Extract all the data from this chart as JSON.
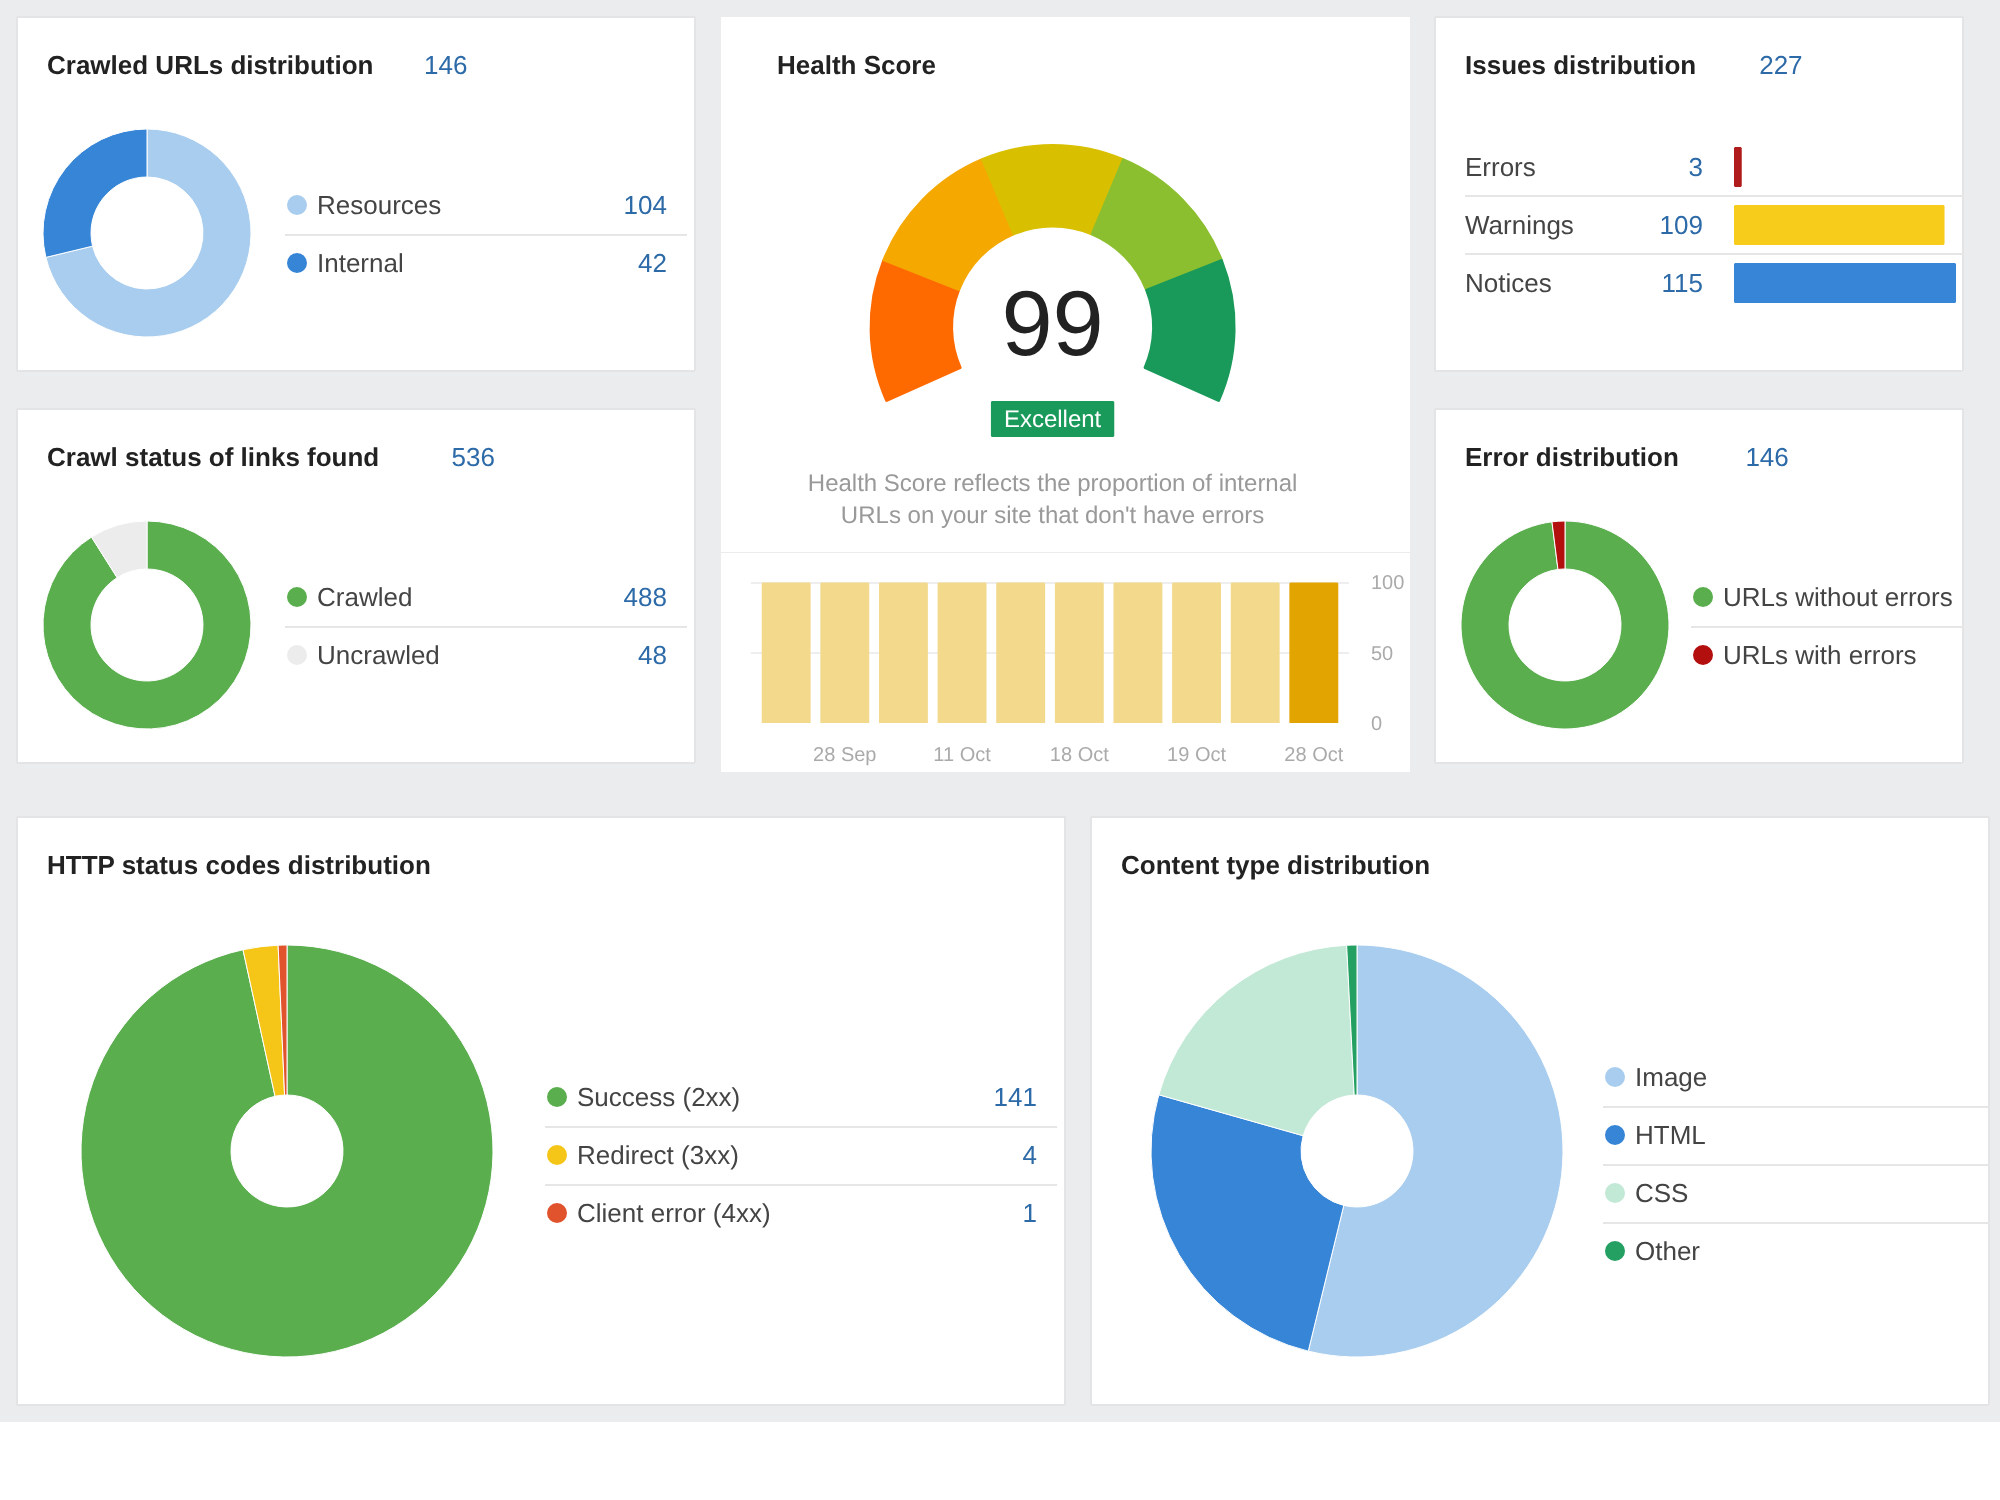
{
  "chart_data": [
    {
      "type": "donut",
      "title": "Crawled URLs distribution",
      "subtitle": "146",
      "categories": [
        "Resources",
        "Internal"
      ],
      "values": [
        104,
        42
      ],
      "colors": [
        "#a9cdee",
        "#3685d6"
      ],
      "data_labels": true,
      "legend": "right"
    },
    {
      "type": "other",
      "title": "Health Score",
      "values": [
        99
      ],
      "data_labels": true,
      "annotations": [
        "Excellent",
        "Health Score reflects the proportion of internal URLs on your site that don't have errors"
      ]
    },
    {
      "type": "bar",
      "categories": [
        null,
        "28 Sep",
        null,
        "11 Oct",
        null,
        "18 Oct",
        null,
        "19 Oct",
        null,
        "28 Oct"
      ],
      "values": [
        99,
        99,
        99,
        99,
        99,
        99,
        99,
        99,
        99,
        99
      ],
      "colors": [
        "#f2d98c",
        "#f2d98c",
        "#f2d98c",
        "#f2d98c",
        "#f2d98c",
        "#f2d98c",
        "#f2d98c",
        "#f2d98c",
        "#f2d98c",
        "#e2a400"
      ],
      "ylim": [
        0,
        115
      ],
      "yticks": [
        0,
        50,
        100
      ],
      "grid": "y"
    },
    {
      "type": "bar",
      "orientation": "horizontal",
      "title": "Issues distribution",
      "subtitle": "227",
      "categories": [
        "Errors",
        "Warnings",
        "Notices"
      ],
      "values": [
        3,
        109,
        115
      ],
      "colors": [
        "#b01c1c",
        "#f8cc1b",
        "#3685d6"
      ],
      "data_labels": true
    },
    {
      "type": "donut",
      "title": "Crawl status of links found",
      "subtitle": "536",
      "categories": [
        "Crawled",
        "Uncrawled"
      ],
      "values": [
        488,
        48
      ],
      "colors": [
        "#5aae4e",
        "#ececec"
      ],
      "data_labels": true,
      "legend": "right"
    },
    {
      "type": "donut",
      "title": "Error distribution",
      "subtitle": "146",
      "categories": [
        "URLs without errors",
        "URLs with errors"
      ],
      "values": [
        98,
        2
      ],
      "colors": [
        "#5aae4e",
        "#b40f0f"
      ],
      "legend": "right"
    },
    {
      "type": "donut",
      "title": "HTTP status codes distribution",
      "categories": [
        "Success (2xx)",
        "Redirect (3xx)",
        "Client error (4xx)"
      ],
      "values": [
        141,
        4,
        1
      ],
      "colors": [
        "#5aae4e",
        "#f5c518",
        "#e0532c"
      ],
      "data_labels": true,
      "legend": "right"
    },
    {
      "type": "donut",
      "title": "Content type distribution",
      "categories": [
        "Image",
        "HTML",
        "CSS",
        "Other"
      ],
      "values": [
        53.8,
        25.6,
        19.8,
        0.8
      ],
      "colors": [
        "#a9cdee",
        "#3685d6",
        "#c2e8d6",
        "#23a062"
      ],
      "legend": "right"
    }
  ]
}
